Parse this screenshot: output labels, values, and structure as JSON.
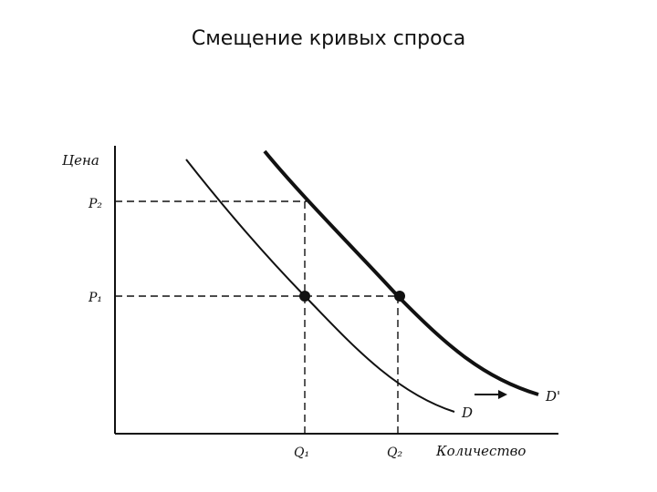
{
  "slide": {
    "title": "Смещение кривых спроса"
  },
  "diagram": {
    "y_axis_label": "Цена",
    "x_axis_label": "Количество",
    "price_ticks": [
      "P₂",
      "P₁"
    ],
    "quantity_ticks": [
      "Q₁",
      "Q₂"
    ],
    "curves": [
      {
        "label": "D",
        "style": "thin"
      },
      {
        "label": "D'",
        "style": "thick"
      }
    ],
    "equilibrium_points": [
      {
        "price": "P₁",
        "quantity": "Q₁",
        "curve": "D"
      },
      {
        "price": "P₁",
        "quantity": "Q₂",
        "curve": "D'"
      }
    ],
    "shift_direction": "right",
    "colors": {
      "ink": "#111111",
      "background": "#ffffff"
    }
  }
}
